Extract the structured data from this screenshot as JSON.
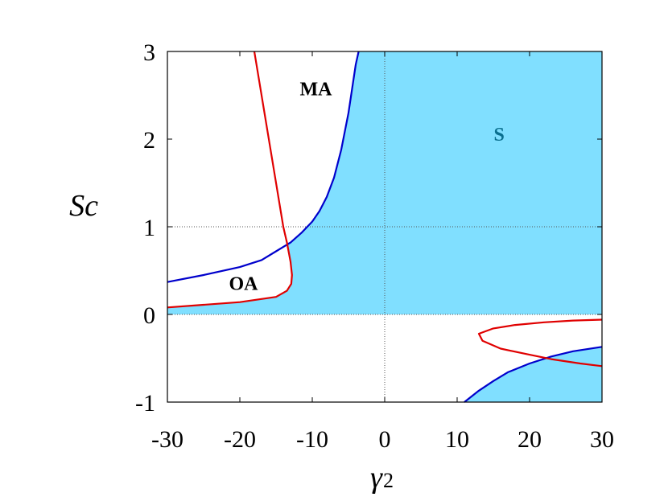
{
  "chart_data": {
    "type": "area",
    "xlabel": "γ",
    "xlabel_sub": "2",
    "ylabel": "Sc",
    "xlim": [
      -30,
      30
    ],
    "ylim": [
      -1,
      3
    ],
    "xticks": [
      "-30",
      "-20",
      "-10",
      "0",
      "10",
      "20",
      "30"
    ],
    "yticks": [
      "-1",
      "0",
      "1",
      "2",
      "3"
    ],
    "xtick_values": [
      -30,
      -20,
      -10,
      0,
      10,
      20,
      30
    ],
    "ytick_values": [
      -1,
      0,
      1,
      2,
      3
    ],
    "reference_lines": {
      "x": [
        0
      ],
      "y": [
        0,
        1
      ]
    },
    "colors": {
      "fill": "#80dfff",
      "blue": "#0000cc",
      "red": "#e00000",
      "s_label": "#0a6f8f"
    },
    "annotations": [
      {
        "text": "MA",
        "x": -9.5,
        "y": 2.5,
        "color": "#000000"
      },
      {
        "text": "OA",
        "x": -19.5,
        "y": 0.28,
        "color": "#000000"
      },
      {
        "text": "S",
        "x": 15.8,
        "y": 1.98,
        "color": "#0a6f8f"
      }
    ],
    "series": [
      {
        "color": "blue",
        "points": [
          [
            -30,
            0.37
          ],
          [
            -25,
            0.45
          ],
          [
            -20,
            0.54
          ],
          [
            -17,
            0.62
          ],
          [
            -15,
            0.72
          ],
          [
            -13,
            0.82
          ],
          [
            -11.5,
            0.93
          ],
          [
            -10,
            1.06
          ],
          [
            -9,
            1.18
          ],
          [
            -8,
            1.34
          ],
          [
            -7,
            1.56
          ],
          [
            -6,
            1.88
          ],
          [
            -5,
            2.3
          ],
          [
            -4,
            2.85
          ],
          [
            -3.6,
            3.0
          ]
        ]
      },
      {
        "color": "blue",
        "points": [
          [
            11,
            -1.0
          ],
          [
            13,
            -0.87
          ],
          [
            15,
            -0.76
          ],
          [
            17,
            -0.66
          ],
          [
            20,
            -0.56
          ],
          [
            23,
            -0.48
          ],
          [
            26,
            -0.42
          ],
          [
            30,
            -0.37
          ]
        ]
      },
      {
        "color": "red",
        "points": [
          [
            -18,
            3.0
          ],
          [
            -17,
            2.5
          ],
          [
            -16,
            2.0
          ],
          [
            -15,
            1.5
          ],
          [
            -14,
            1.0
          ],
          [
            -13.5,
            0.82
          ],
          [
            -13.0,
            0.6
          ],
          [
            -12.8,
            0.45
          ],
          [
            -12.9,
            0.35
          ],
          [
            -13.5,
            0.27
          ],
          [
            -15,
            0.2
          ],
          [
            -20,
            0.14
          ],
          [
            -25,
            0.11
          ],
          [
            -30,
            0.08
          ]
        ]
      },
      {
        "color": "red",
        "points": [
          [
            30,
            -0.06
          ],
          [
            26,
            -0.07
          ],
          [
            22,
            -0.09
          ],
          [
            18,
            -0.12
          ],
          [
            15,
            -0.16
          ],
          [
            13,
            -0.22
          ],
          [
            13.5,
            -0.3
          ],
          [
            16,
            -0.39
          ],
          [
            20,
            -0.46
          ],
          [
            23,
            -0.51
          ],
          [
            27,
            -0.56
          ],
          [
            30,
            -0.59
          ]
        ]
      }
    ],
    "fill_regions": [
      [
        [
          -30,
          0.0
        ],
        [
          30,
          0.0
        ],
        [
          30,
          3.0
        ],
        [
          -3.6,
          3.0
        ],
        [
          -4,
          2.85
        ],
        [
          -5,
          2.3
        ],
        [
          -6,
          1.88
        ],
        [
          -7,
          1.56
        ],
        [
          -8,
          1.34
        ],
        [
          -9,
          1.18
        ],
        [
          -10,
          1.06
        ],
        [
          -11.5,
          0.93
        ],
        [
          -13,
          0.82
        ],
        [
          -13.5,
          0.82
        ],
        [
          -13.0,
          0.6
        ],
        [
          -12.8,
          0.45
        ],
        [
          -12.9,
          0.35
        ],
        [
          -13.5,
          0.27
        ],
        [
          -15,
          0.2
        ],
        [
          -20,
          0.14
        ],
        [
          -25,
          0.11
        ],
        [
          -30,
          0.08
        ]
      ],
      [
        [
          11,
          -1.0
        ],
        [
          13,
          -0.87
        ],
        [
          15,
          -0.76
        ],
        [
          17,
          -0.66
        ],
        [
          20,
          -0.56
        ],
        [
          23,
          -0.48
        ],
        [
          26,
          -0.42
        ],
        [
          30,
          -0.37
        ],
        [
          30,
          -1.0
        ]
      ]
    ]
  }
}
